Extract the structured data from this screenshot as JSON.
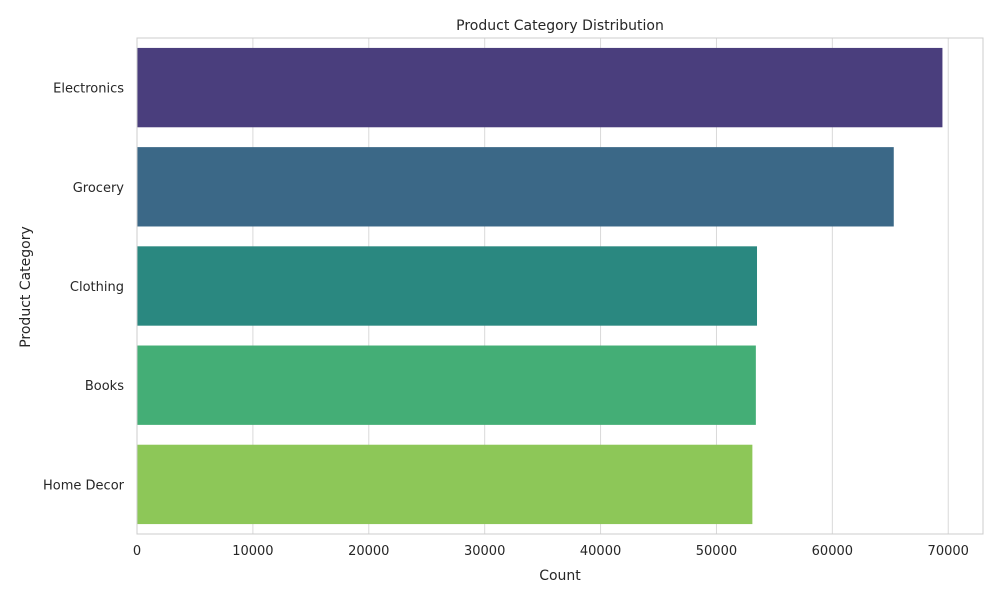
{
  "chart_data": {
    "type": "bar",
    "orientation": "horizontal",
    "title": "Product Category Distribution",
    "xlabel": "Count",
    "ylabel": "Product Category",
    "categories": [
      "Electronics",
      "Grocery",
      "Clothing",
      "Books",
      "Home Decor"
    ],
    "values": [
      69500,
      65300,
      53500,
      53400,
      53100
    ],
    "xlim": [
      0,
      73000
    ],
    "xticks": [
      "0",
      "10000",
      "20000",
      "30000",
      "40000",
      "50000",
      "60000",
      "70000"
    ],
    "grid": true,
    "colors": [
      "#4a3e7d",
      "#3b6887",
      "#2a8880",
      "#44ae76",
      "#8dc758"
    ]
  }
}
